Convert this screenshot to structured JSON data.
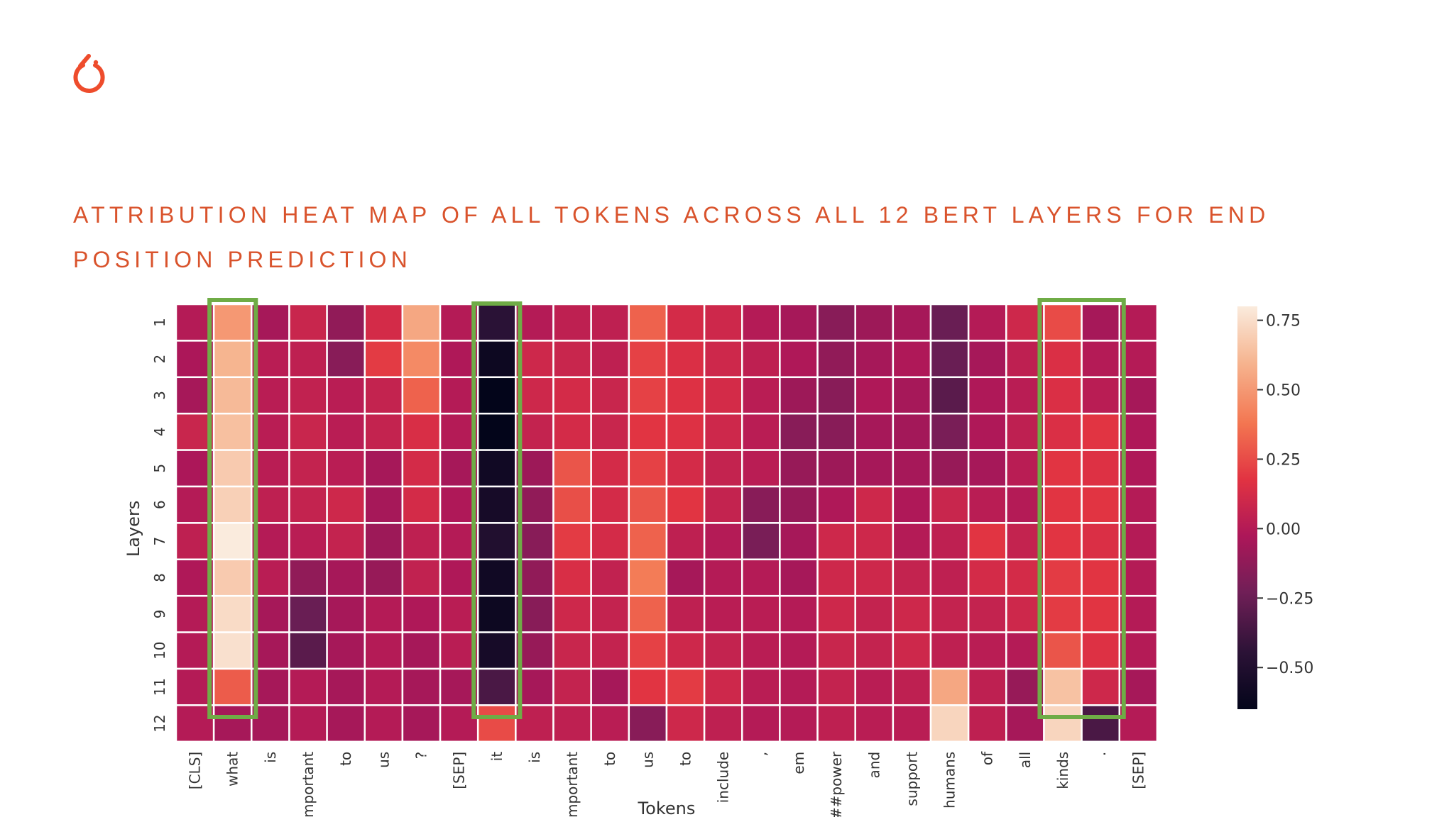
{
  "logo": {
    "name": "pytorch-logo",
    "color": "#ee4c2c"
  },
  "page_title": "Attribution heat map of all tokens across all 12 BERT layers for end position prediction",
  "chart_data": {
    "type": "heatmap",
    "xlabel": "Tokens",
    "ylabel": "Layers",
    "x_tokens": [
      "[CLS]",
      "what",
      "is",
      "important",
      "to",
      "us",
      "?",
      "[SEP]",
      "it",
      "is",
      "important",
      "to",
      "us",
      "to",
      "include",
      ",",
      "em",
      "##power",
      "and",
      "support",
      "humans",
      "of",
      "all",
      "kinds",
      ".",
      "[SEP]"
    ],
    "y_layers": [
      "1",
      "2",
      "3",
      "4",
      "5",
      "6",
      "7",
      "8",
      "9",
      "10",
      "11",
      "12"
    ],
    "values": [
      [
        0.0,
        0.5,
        -0.05,
        0.08,
        -0.12,
        0.12,
        0.55,
        0.0,
        -0.45,
        0.0,
        0.04,
        0.04,
        0.32,
        0.12,
        0.1,
        0.0,
        -0.05,
        -0.15,
        -0.08,
        -0.05,
        -0.25,
        0.0,
        0.1,
        0.25,
        -0.05,
        0.0
      ],
      [
        -0.03,
        0.6,
        0.02,
        0.04,
        -0.15,
        0.2,
        0.45,
        -0.02,
        -0.6,
        0.1,
        0.08,
        0.04,
        0.22,
        0.15,
        0.1,
        0.04,
        -0.02,
        -0.12,
        -0.05,
        -0.02,
        -0.25,
        -0.05,
        0.04,
        0.15,
        0.0,
        0.0
      ],
      [
        -0.05,
        0.62,
        0.02,
        0.05,
        0.02,
        0.06,
        0.32,
        0.0,
        -0.65,
        0.1,
        0.12,
        0.08,
        0.22,
        0.16,
        0.12,
        0.02,
        -0.08,
        -0.15,
        -0.02,
        -0.05,
        -0.3,
        -0.02,
        0.02,
        0.15,
        0.02,
        -0.05
      ],
      [
        0.08,
        0.64,
        0.02,
        0.08,
        0.02,
        0.06,
        0.14,
        0.0,
        -0.65,
        0.06,
        0.12,
        0.08,
        0.18,
        0.16,
        0.1,
        0.02,
        -0.15,
        -0.15,
        -0.05,
        -0.06,
        -0.2,
        -0.02,
        0.04,
        0.15,
        0.18,
        -0.02
      ],
      [
        -0.03,
        0.68,
        0.02,
        0.06,
        0.02,
        -0.05,
        0.12,
        -0.05,
        -0.58,
        -0.08,
        0.28,
        0.12,
        0.22,
        0.12,
        0.06,
        0.02,
        -0.1,
        -0.08,
        -0.05,
        -0.05,
        -0.1,
        -0.05,
        0.02,
        0.18,
        0.16,
        -0.02
      ],
      [
        0.0,
        0.7,
        0.04,
        0.06,
        0.1,
        -0.05,
        0.12,
        -0.02,
        -0.55,
        -0.12,
        0.26,
        0.12,
        0.28,
        0.18,
        0.06,
        -0.15,
        -0.1,
        -0.02,
        0.1,
        -0.02,
        0.08,
        0.02,
        0.0,
        0.18,
        0.18,
        0.0
      ],
      [
        0.04,
        0.8,
        0.0,
        0.02,
        0.06,
        -0.08,
        0.04,
        0.0,
        -0.5,
        -0.15,
        0.2,
        0.12,
        0.32,
        0.04,
        0.0,
        -0.2,
        -0.05,
        0.1,
        0.1,
        0.0,
        0.04,
        0.18,
        0.06,
        0.18,
        0.15,
        0.0
      ],
      [
        -0.02,
        0.68,
        0.02,
        -0.12,
        -0.05,
        -0.1,
        0.05,
        -0.02,
        -0.58,
        -0.12,
        0.14,
        0.05,
        0.4,
        -0.05,
        0.0,
        0.0,
        -0.05,
        0.1,
        0.1,
        0.06,
        0.04,
        0.12,
        0.12,
        0.2,
        0.18,
        0.0
      ],
      [
        0.0,
        0.74,
        -0.05,
        -0.25,
        -0.05,
        0.0,
        -0.02,
        0.02,
        -0.6,
        -0.15,
        0.1,
        0.06,
        0.32,
        0.04,
        0.02,
        0.02,
        0.0,
        0.1,
        0.06,
        0.1,
        0.06,
        0.06,
        0.1,
        0.2,
        0.18,
        0.0
      ],
      [
        0.0,
        0.76,
        -0.05,
        -0.3,
        -0.05,
        0.0,
        -0.05,
        0.02,
        -0.55,
        -0.1,
        0.08,
        0.06,
        0.22,
        0.1,
        0.06,
        0.02,
        0.0,
        0.08,
        0.06,
        0.1,
        0.04,
        0.02,
        0.0,
        0.28,
        0.16,
        0.0
      ],
      [
        0.0,
        0.3,
        -0.05,
        0.0,
        -0.05,
        0.0,
        -0.05,
        -0.05,
        -0.35,
        -0.05,
        0.06,
        -0.05,
        0.18,
        0.2,
        0.1,
        0.02,
        0.0,
        0.06,
        0.02,
        0.04,
        0.55,
        0.04,
        -0.1,
        0.65,
        0.1,
        -0.05
      ],
      [
        0.0,
        -0.05,
        -0.05,
        0.0,
        -0.05,
        0.0,
        -0.05,
        0.0,
        0.25,
        0.04,
        0.04,
        0.02,
        -0.15,
        0.1,
        0.04,
        0.0,
        0.0,
        0.04,
        0.02,
        0.02,
        0.72,
        0.04,
        -0.05,
        0.72,
        -0.35,
        0.0
      ]
    ],
    "vmin": -0.65,
    "vmax": 0.8,
    "colorbar_ticks": [
      0.75,
      0.5,
      0.25,
      0.0,
      -0.25,
      -0.5
    ],
    "colorbar_tick_labels": [
      "0.75",
      "0.50",
      "0.25",
      "0.00",
      "−0.25",
      "−0.50"
    ],
    "colormap": "rocket",
    "grid": true,
    "highlight_columns": [
      "what",
      "it",
      "kinds / ."
    ],
    "highlight_color": "#6fac46"
  }
}
